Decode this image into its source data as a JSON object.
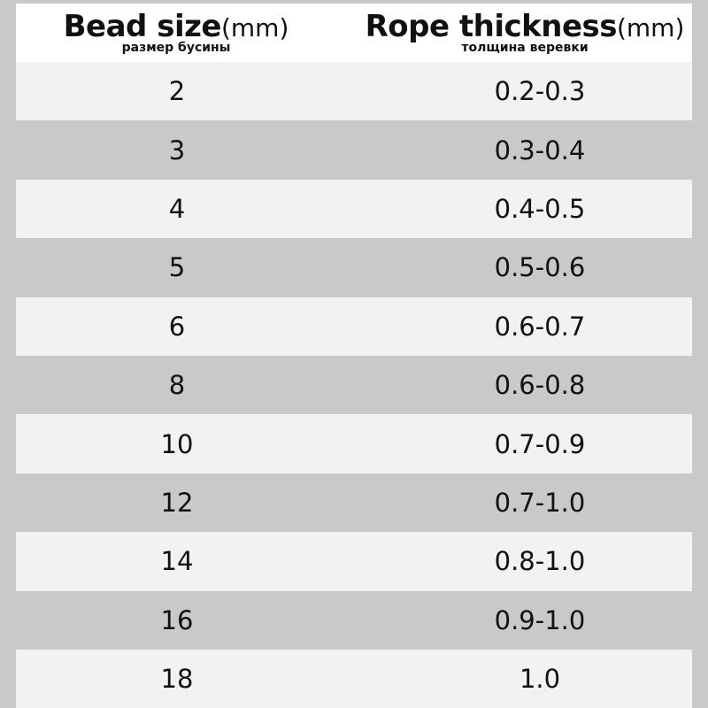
{
  "header": {
    "bead_size": {
      "title": "Bead size",
      "unit": "(mm)",
      "subtitle": "размер бусины"
    },
    "rope_thickness": {
      "title": "Rope thickness",
      "unit": "(mm)",
      "subtitle": "толщина веревки"
    }
  },
  "table": {
    "rows": [
      [
        2,
        "0.2-0.3"
      ],
      [
        3,
        "0.3-0.4"
      ],
      [
        4,
        "0.4-0.5"
      ],
      [
        5,
        "0.5-0.6"
      ],
      [
        6,
        "0.6-0.7"
      ],
      [
        8,
        "0.6-0.8"
      ],
      [
        10,
        "0.7-0.9"
      ],
      [
        12,
        "0.7-1.0"
      ],
      [
        14,
        "0.8-1.0"
      ],
      [
        16,
        "0.9-1.0"
      ],
      [
        18,
        "1.0"
      ]
    ]
  }
}
